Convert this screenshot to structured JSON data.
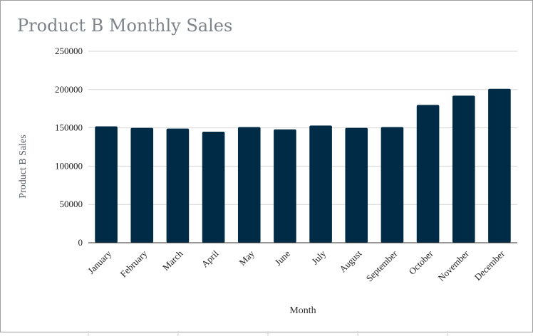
{
  "chart_data": {
    "type": "bar",
    "title": "Product B Monthly Sales",
    "xlabel": "Month",
    "ylabel": "Product B Sales",
    "categories": [
      "January",
      "February",
      "March",
      "April",
      "May",
      "June",
      "July",
      "August",
      "September",
      "October",
      "November",
      "December"
    ],
    "values": [
      152000,
      150000,
      149000,
      145000,
      151000,
      148000,
      153000,
      150000,
      151000,
      180000,
      192000,
      201000
    ],
    "ylim": [
      0,
      250000
    ],
    "yticks": [
      0,
      50000,
      100000,
      150000,
      200000,
      250000
    ],
    "bar_color": "#002b46",
    "grid": true,
    "legend": "none"
  }
}
